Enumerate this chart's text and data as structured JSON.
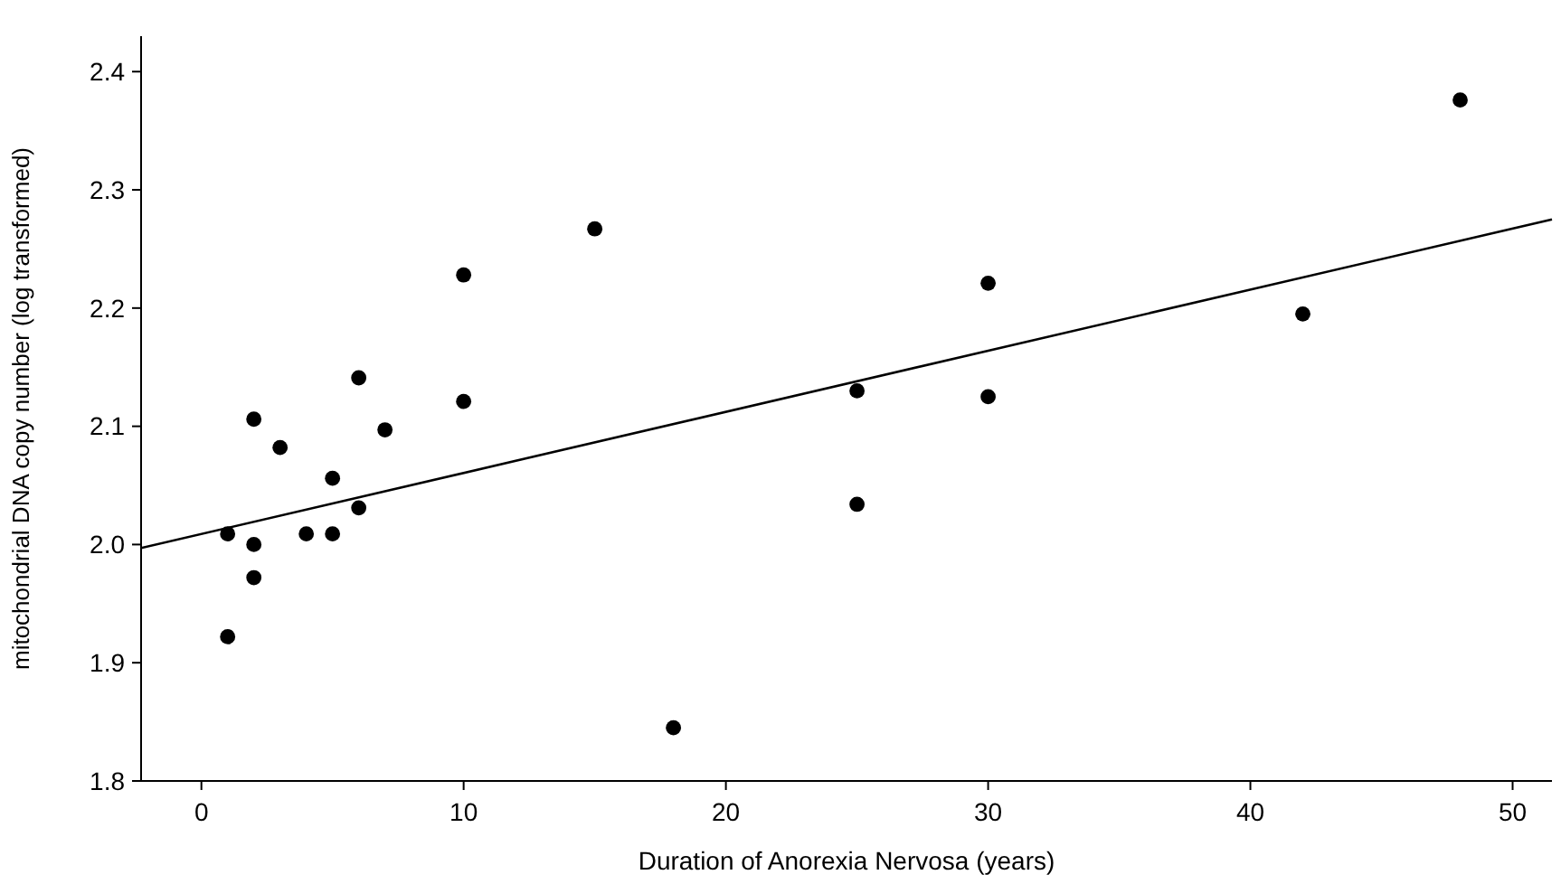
{
  "chart_data": {
    "type": "scatter",
    "xlabel": "Duration of Anorexia Nervosa (years)",
    "ylabel": "mitochondrial DNA copy number (log transformed)",
    "xlim": [
      -2.3,
      51.5
    ],
    "xticks": [
      0,
      10,
      20,
      30,
      40,
      50
    ],
    "ylim": [
      1.8,
      2.43
    ],
    "yticks": [
      1.8,
      1.9,
      {
        "value": 2,
        "label": "2.0"
      },
      2.1,
      2.2,
      2.3,
      2.4
    ],
    "grid": false,
    "series": [
      {
        "marker": "circle",
        "color": "#000000",
        "x": [
          1,
          1,
          2,
          2,
          2,
          3,
          4,
          5,
          5,
          6,
          6,
          7,
          10,
          10,
          15,
          18,
          25,
          25,
          30,
          30,
          42,
          48
        ],
        "values": [
          2.009,
          1.922,
          2.0,
          1.972,
          2.106,
          2.082,
          2.009,
          2.009,
          2.056,
          2.031,
          2.141,
          2.097,
          2.121,
          2.228,
          2.267,
          1.845,
          2.13,
          2.034,
          2.221,
          2.125,
          2.195,
          2.376
        ]
      },
      {
        "type": "line",
        "color": "#000000",
        "x": [
          -2.3,
          51.5
        ],
        "values": [
          1.997,
          2.275
        ]
      }
    ]
  }
}
